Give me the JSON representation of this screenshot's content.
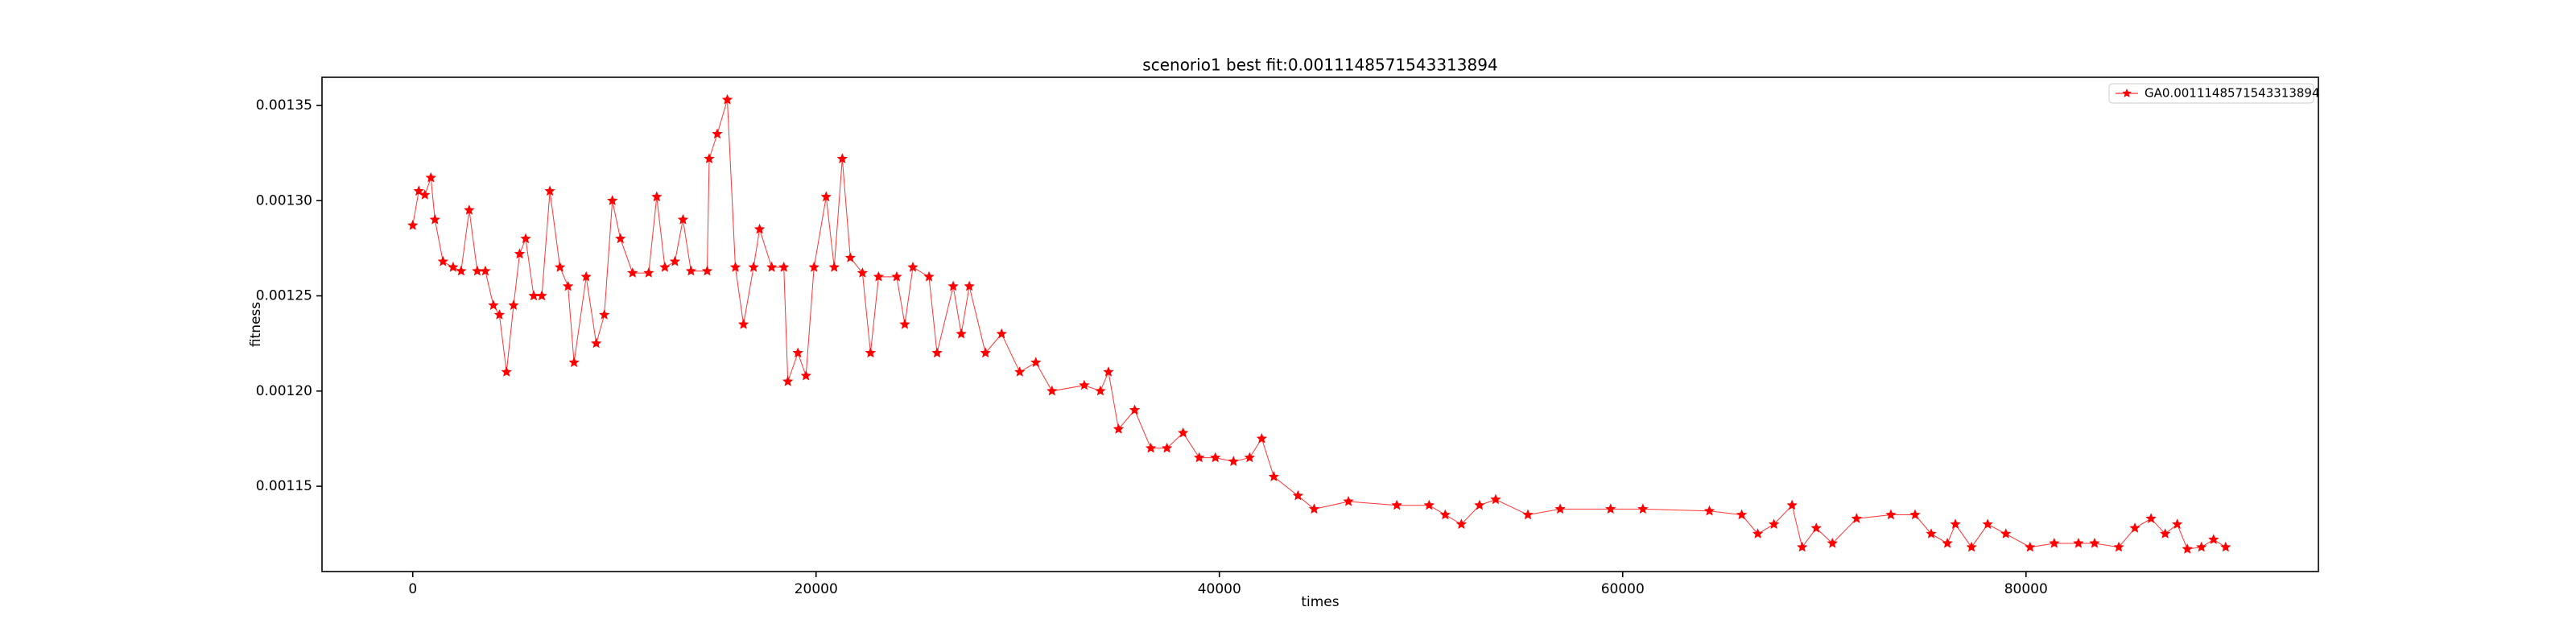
{
  "chart_data": {
    "type": "line",
    "title": "scenorio1 best fit:0.0011148571543313894",
    "x_label": "times",
    "y_label": "fitness",
    "x": [
      0,
      300,
      600,
      900,
      1100,
      1500,
      2000,
      2400,
      2800,
      3200,
      3600,
      4000,
      4300,
      4650,
      5000,
      5300,
      5600,
      6000,
      6400,
      6800,
      7300,
      7700,
      8000,
      8600,
      9100,
      9500,
      9900,
      10300,
      10900,
      11700,
      12100,
      12500,
      13000,
      13400,
      13800,
      14600,
      14700,
      15100,
      15600,
      16000,
      16400,
      16900,
      17200,
      17800,
      18400,
      18600,
      19100,
      19500,
      19900,
      20500,
      20900,
      21300,
      21700,
      22300,
      22700,
      23100,
      24000,
      24400,
      24800,
      25600,
      26000,
      26800,
      27200,
      27600,
      28400,
      29200,
      30100,
      30900,
      31700,
      33300,
      34100,
      34500,
      35000,
      35800,
      36600,
      37400,
      38200,
      39000,
      39800,
      40700,
      41500,
      42100,
      42700,
      43900,
      44700,
      46400,
      48800,
      50400,
      51200,
      52000,
      52900,
      53700,
      55300,
      56900,
      59400,
      61000,
      64300,
      65900,
      66700,
      67500,
      68400,
      68900,
      69600,
      70400,
      71600,
      73300,
      74500,
      75300,
      76100,
      76500,
      77300,
      78100,
      79000,
      80200,
      81400,
      82600,
      83400,
      84600,
      85400,
      86200,
      86900,
      87500,
      88000,
      88700,
      89300,
      89900
    ],
    "series": [
      {
        "name": "GA0.0011148571543313894",
        "color": "#ff0000",
        "values": [
          0.001287,
          0.001305,
          0.001303,
          0.001312,
          0.00129,
          0.001268,
          0.001265,
          0.001263,
          0.001295,
          0.001263,
          0.001263,
          0.001245,
          0.00124,
          0.00121,
          0.001245,
          0.001272,
          0.00128,
          0.00125,
          0.00125,
          0.001305,
          0.001265,
          0.001255,
          0.001215,
          0.00126,
          0.001225,
          0.00124,
          0.0013,
          0.00128,
          0.001262,
          0.001262,
          0.001302,
          0.001265,
          0.001268,
          0.00129,
          0.001263,
          0.001263,
          0.001322,
          0.001335,
          0.001353,
          0.001265,
          0.001235,
          0.001265,
          0.001285,
          0.001265,
          0.001265,
          0.001205,
          0.00122,
          0.001208,
          0.001265,
          0.001302,
          0.001265,
          0.001322,
          0.00127,
          0.001262,
          0.00122,
          0.00126,
          0.00126,
          0.001235,
          0.001265,
          0.00126,
          0.00122,
          0.001255,
          0.00123,
          0.001255,
          0.00122,
          0.00123,
          0.00121,
          0.001215,
          0.0012,
          0.001203,
          0.0012,
          0.00121,
          0.00118,
          0.00119,
          0.00117,
          0.00117,
          0.001178,
          0.001165,
          0.001165,
          0.001163,
          0.001165,
          0.001175,
          0.001155,
          0.001145,
          0.001138,
          0.001142,
          0.00114,
          0.00114,
          0.001135,
          0.00113,
          0.00114,
          0.001143,
          0.001135,
          0.001138,
          0.001138,
          0.001138,
          0.001137,
          0.001135,
          0.001125,
          0.00113,
          0.00114,
          0.001118,
          0.001128,
          0.00112,
          0.001133,
          0.001135,
          0.001135,
          0.001125,
          0.00112,
          0.00113,
          0.001118,
          0.00113,
          0.001125,
          0.001118,
          0.00112,
          0.00112,
          0.00112,
          0.001118,
          0.001128,
          0.001133,
          0.001125,
          0.00113,
          0.001117,
          0.001118,
          0.001122,
          0.001118
        ]
      }
    ],
    "xlim": [
      -4500,
      94500
    ],
    "xticks": [
      0,
      20000,
      40000,
      60000,
      80000
    ],
    "ylim": [
      0.0011052,
      0.0013648
    ],
    "yticks": [
      0.00115,
      {
        "value": 0.0012,
        "label": "0.00120"
      },
      0.00125,
      {
        "value": 0.0013,
        "label": "0.00130"
      },
      0.00135
    ],
    "legend": "upper right",
    "marker": "star"
  }
}
